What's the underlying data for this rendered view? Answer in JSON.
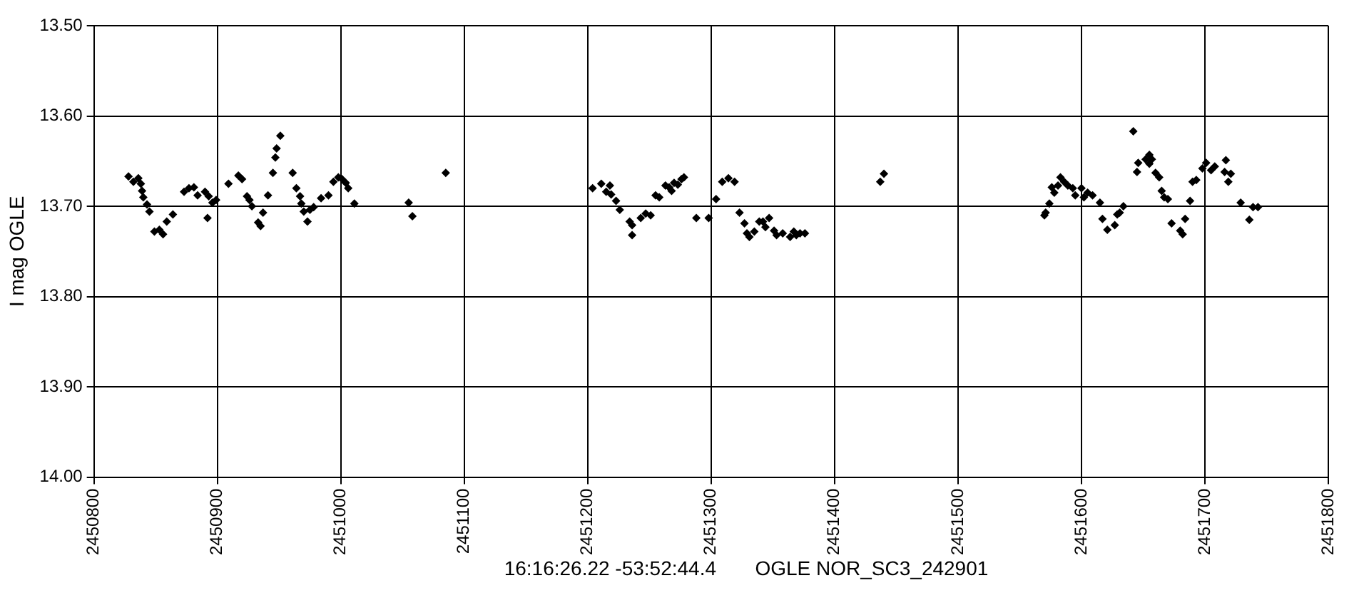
{
  "chart_data": {
    "type": "scatter",
    "ylabel": "I mag OGLE",
    "annotations": [
      "16:16:26.22 -53:52:44.4       OGLE NOR_SC3_242901"
    ],
    "xlim": [
      2450800,
      2451800
    ],
    "xticks": [
      2450800,
      2450900,
      2451000,
      2451100,
      2451200,
      2451300,
      2451400,
      2451500,
      2451600,
      2451700,
      2451800
    ],
    "ylim": [
      14.0,
      13.5
    ],
    "yticks": [
      {
        "value": 13.5,
        "label": "13.50"
      },
      {
        "value": 13.6,
        "label": "13.60"
      },
      {
        "value": 13.7,
        "label": "13.70"
      },
      {
        "value": 13.8,
        "label": "13.80"
      },
      {
        "value": 13.9,
        "label": "13.90"
      },
      {
        "value": 14.0,
        "label": "14.00"
      }
    ],
    "grid": true,
    "legend": false,
    "marker": "diamond",
    "series": [
      {
        "color": "#000000",
        "x": [
          2450828,
          2450832,
          2450836,
          2450838,
          2450839,
          2450840,
          2450843,
          2450845,
          2450849,
          2450853,
          2450856,
          2450859,
          2450864,
          2450873,
          2450877,
          2450881,
          2450884,
          2450890,
          2450892,
          2450893,
          2450896,
          2450899,
          2450909,
          2450917,
          2450920,
          2450924,
          2450926,
          2450928,
          2450933,
          2450935,
          2450937,
          2450941,
          2450945,
          2450947,
          2450948,
          2450951,
          2450961,
          2450964,
          2450967,
          2450968,
          2450970,
          2450973,
          2450975,
          2450978,
          2450984,
          2450990,
          2450994,
          2450998,
          2451001,
          2451004,
          2451006,
          2451011,
          2451055,
          2451058,
          2451085,
          2451204,
          2451211,
          2451215,
          2451218,
          2451219,
          2451223,
          2451226,
          2451234,
          2451236,
          2451236,
          2451243,
          2451247,
          2451251,
          2451255,
          2451258,
          2451263,
          2451266,
          2451268,
          2451270,
          2451273,
          2451276,
          2451278,
          2451288,
          2451298,
          2451304,
          2451309,
          2451314,
          2451319,
          2451323,
          2451327,
          2451329,
          2451331,
          2451335,
          2451339,
          2451342,
          2451344,
          2451347,
          2451351,
          2451353,
          2451358,
          2451364,
          2451367,
          2451369,
          2451372,
          2451376,
          2451437,
          2451440,
          2451570,
          2451571,
          2451574,
          2451576,
          2451578,
          2451581,
          2451583,
          2451586,
          2451589,
          2451593,
          2451595,
          2451600,
          2451602,
          2451605,
          2451609,
          2451615,
          2451617,
          2451621,
          2451627,
          2451629,
          2451631,
          2451634,
          2451642,
          2451645,
          2451646,
          2451652,
          2451655,
          2451657,
          2451655,
          2451660,
          2451663,
          2451665,
          2451667,
          2451670,
          2451673,
          2451680,
          2451682,
          2451684,
          2451688,
          2451690,
          2451693,
          2451698,
          2451701,
          2451705,
          2451708,
          2451716,
          2451717,
          2451719,
          2451721,
          2451729,
          2451736,
          2451739,
          2451743
        ],
        "values": [
          13.667,
          13.673,
          13.669,
          13.675,
          13.683,
          13.69,
          13.698,
          13.706,
          13.728,
          13.726,
          13.731,
          13.717,
          13.709,
          13.684,
          13.68,
          13.679,
          13.688,
          13.684,
          13.713,
          13.689,
          13.696,
          13.693,
          13.675,
          13.666,
          13.67,
          13.689,
          13.693,
          13.7,
          13.718,
          13.722,
          13.707,
          13.688,
          13.663,
          13.646,
          13.636,
          13.622,
          13.663,
          13.68,
          13.689,
          13.697,
          13.706,
          13.717,
          13.704,
          13.701,
          13.691,
          13.688,
          13.673,
          13.668,
          13.67,
          13.674,
          13.68,
          13.697,
          13.696,
          13.711,
          13.663,
          13.68,
          13.675,
          13.684,
          13.677,
          13.687,
          13.694,
          13.704,
          13.717,
          13.732,
          13.721,
          13.713,
          13.708,
          13.71,
          13.688,
          13.69,
          13.677,
          13.679,
          13.683,
          13.674,
          13.676,
          13.67,
          13.668,
          13.713,
          13.713,
          13.692,
          13.673,
          13.669,
          13.673,
          13.707,
          13.719,
          13.73,
          13.734,
          13.728,
          13.717,
          13.717,
          13.723,
          13.713,
          13.727,
          13.732,
          13.73,
          13.734,
          13.728,
          13.732,
          13.73,
          13.73,
          13.673,
          13.664,
          13.71,
          13.707,
          13.697,
          13.679,
          13.685,
          13.677,
          13.668,
          13.673,
          13.677,
          13.68,
          13.688,
          13.68,
          13.69,
          13.685,
          13.688,
          13.696,
          13.714,
          13.726,
          13.721,
          13.709,
          13.707,
          13.7,
          13.617,
          13.662,
          13.652,
          13.648,
          13.643,
          13.648,
          13.653,
          13.663,
          13.668,
          13.683,
          13.69,
          13.692,
          13.719,
          13.727,
          13.731,
          13.714,
          13.694,
          13.673,
          13.671,
          13.658,
          13.652,
          13.66,
          13.656,
          13.662,
          13.649,
          13.673,
          13.664,
          13.696,
          13.715,
          13.701,
          13.701
        ]
      }
    ]
  }
}
